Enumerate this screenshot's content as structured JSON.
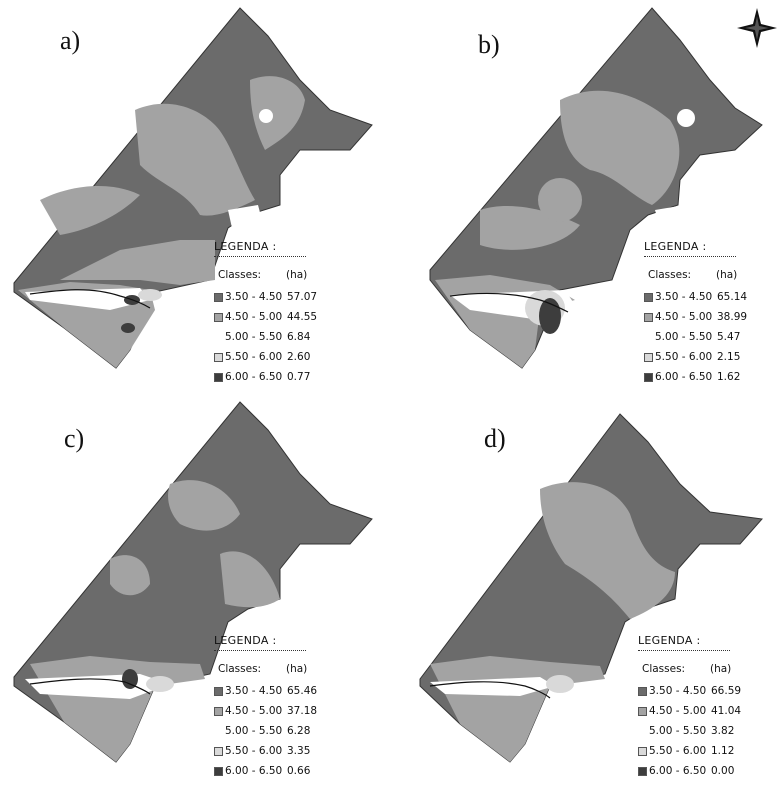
{
  "colors": {
    "class_1": "#6b6b6b",
    "class_2": "#a3a3a3",
    "class_3": "#ffffff",
    "class_4": "#d9d9d9",
    "class_5": "#3d3d3d"
  },
  "panels": [
    {
      "id": "a",
      "label": "a)",
      "legend": {
        "title": "LEGENDA :",
        "classes_header": "Classes:",
        "ha_header": "(ha)",
        "rows": [
          {
            "class": "3.50 -  4.50",
            "ha": "57.07",
            "swatch": "class_1"
          },
          {
            "class": "4.50 -  5.00",
            "ha": "44.55",
            "swatch": "class_2"
          },
          {
            "class": "5.00 -  5.50",
            "ha": "6.84",
            "swatch": "class_3"
          },
          {
            "class": "5.50 -  6.00",
            "ha": "2.60",
            "swatch": "class_4"
          },
          {
            "class": "6.00 -  6.50",
            "ha": "0.77",
            "swatch": "class_5"
          }
        ]
      }
    },
    {
      "id": "b",
      "label": "b)",
      "legend": {
        "title": "LEGENDA :",
        "classes_header": "Classes:",
        "ha_header": "(ha)",
        "rows": [
          {
            "class": "3.50 -  4.50",
            "ha": "65.14",
            "swatch": "class_1"
          },
          {
            "class": "4.50 -  5.00",
            "ha": "38.99",
            "swatch": "class_2"
          },
          {
            "class": "5.00 -  5.50",
            "ha": "5.47",
            "swatch": "class_3"
          },
          {
            "class": "5.50 -  6.00",
            "ha": "2.15",
            "swatch": "class_4"
          },
          {
            "class": "6.00 -  6.50",
            "ha": "1.62",
            "swatch": "class_5"
          }
        ]
      }
    },
    {
      "id": "c",
      "label": "c)",
      "legend": {
        "title": "LEGENDA :",
        "classes_header": "Classes:",
        "ha_header": "(ha)",
        "rows": [
          {
            "class": "3.50 -  4.50",
            "ha": "65.46",
            "swatch": "class_1"
          },
          {
            "class": "4.50 -  5.00",
            "ha": "37.18",
            "swatch": "class_2"
          },
          {
            "class": "5.00 -  5.50",
            "ha": "6.28",
            "swatch": "class_3"
          },
          {
            "class": "5.50 -  6.00",
            "ha": "3.35",
            "swatch": "class_4"
          },
          {
            "class": "6.00 -  6.50",
            "ha": "0.66",
            "swatch": "class_5"
          }
        ]
      }
    },
    {
      "id": "d",
      "label": "d)",
      "legend": {
        "title": "LEGENDA :",
        "classes_header": "Classes:",
        "ha_header": "(ha)",
        "rows": [
          {
            "class": "3.50 -  4.50",
            "ha": "66.59",
            "swatch": "class_1"
          },
          {
            "class": "4.50 -  5.00",
            "ha": "41.04",
            "swatch": "class_2"
          },
          {
            "class": "5.00 -  5.50",
            "ha": "3.82",
            "swatch": "class_3"
          },
          {
            "class": "5.50 -  6.00",
            "ha": "1.12",
            "swatch": "class_4"
          },
          {
            "class": "6.00 -  6.50",
            "ha": "0.00",
            "swatch": "class_5"
          }
        ]
      }
    }
  ],
  "compass": {
    "icon": "compass-rose-icon"
  }
}
